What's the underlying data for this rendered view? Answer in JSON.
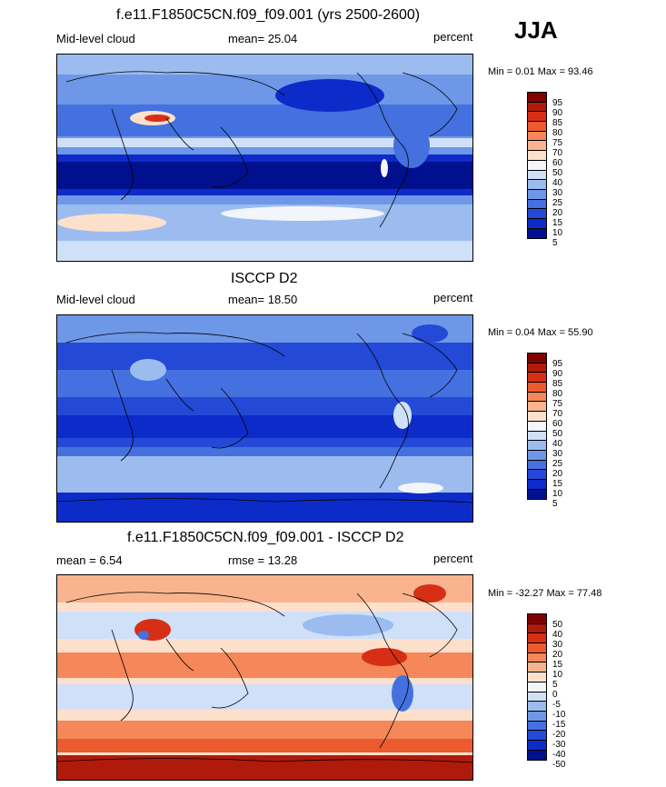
{
  "season": "JJA",
  "panels": [
    {
      "title": "f.e11.F1850C5CN.f09_f09.001 (yrs 2500-2600)",
      "left_label": "Mid-level cloud",
      "mean_label": "mean=  25.04",
      "units": "percent",
      "minmax": "Min =   0.01 Max =  93.46",
      "colorbar_ticks": [
        "95",
        "90",
        "85",
        "80",
        "75",
        "70",
        "60",
        "50",
        "40",
        "30",
        "25",
        "20",
        "15",
        "10",
        "5"
      ]
    },
    {
      "title": "ISCCP D2",
      "left_label": "Mid-level cloud",
      "mean_label": "mean=  18.50",
      "units": "percent",
      "minmax": "Min =   0.04 Max =  55.90",
      "colorbar_ticks": [
        "95",
        "90",
        "85",
        "80",
        "75",
        "70",
        "60",
        "50",
        "40",
        "30",
        "25",
        "20",
        "15",
        "10",
        "5"
      ]
    },
    {
      "title": "f.e11.F1850C5CN.f09_f09.001 - ISCCP D2",
      "left_label": "mean =   6.54",
      "mean_label": "rmse =  13.28",
      "units": "percent",
      "minmax": "Min = -32.27 Max =  77.48",
      "colorbar_ticks": [
        "50",
        "40",
        "30",
        "20",
        "15",
        "10",
        "5",
        "0",
        "-5",
        "-10",
        "-15",
        "-20",
        "-30",
        "-40",
        "-50"
      ]
    }
  ],
  "colors": {
    "abs_scale": [
      "#800000",
      "#b01a0a",
      "#d62f16",
      "#ec5a30",
      "#f5875a",
      "#f9b48f",
      "#fde0cc",
      "#f2f5fa",
      "#cfe0f8",
      "#9cbcf0",
      "#6f97e8",
      "#4471df",
      "#2449d6",
      "#0d2bc8",
      "#00108f"
    ],
    "diff_scale": [
      "#800000",
      "#b01a0a",
      "#d62f16",
      "#ec5a30",
      "#f5875a",
      "#f9b48f",
      "#fde0cc",
      "#f2f5fa",
      "#cfe0f8",
      "#9cbcf0",
      "#6f97e8",
      "#4471df",
      "#2449d6",
      "#0d2bc8",
      "#00108f"
    ]
  }
}
